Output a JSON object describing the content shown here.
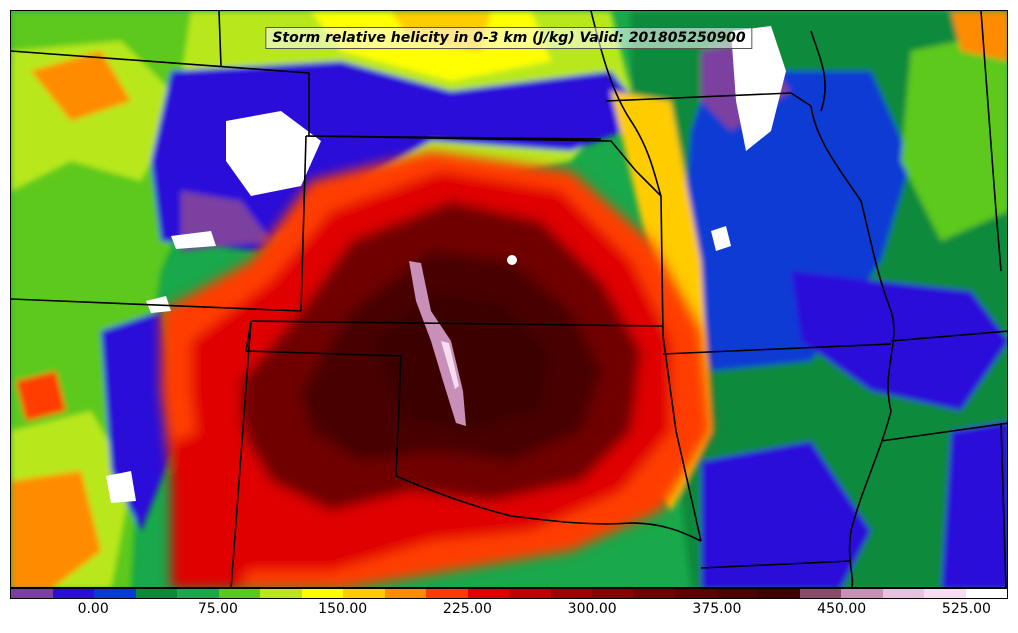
{
  "title": "Storm relative helicity in 0-3 km (J/kg) Valid: 201805250900",
  "colorbar": {
    "colors": [
      "#7b3fa0",
      "#2a0dd9",
      "#0a3ad4",
      "#0b8a3a",
      "#19a84a",
      "#5cc91a",
      "#b8e81a",
      "#ffff00",
      "#ffcc00",
      "#ff8c00",
      "#ff3c00",
      "#e00000",
      "#c00000",
      "#a00000",
      "#880000",
      "#700000",
      "#5a0000",
      "#4a0000",
      "#3c0000",
      "#8a4a6a",
      "#c890b8",
      "#e8c0e0",
      "#f7dcf2",
      "#ffffff"
    ],
    "tick_labels": [
      "0.00",
      "75.00",
      "150.00",
      "225.00",
      "300.00",
      "375.00",
      "450.00",
      "525.00"
    ],
    "tick_values": [
      0,
      75,
      150,
      225,
      300,
      375,
      450,
      525
    ],
    "range": [
      -50,
      550
    ]
  },
  "map": {
    "background": "#19a84a",
    "regions": [
      {
        "name": "west-green",
        "color": "#5cc91a"
      },
      {
        "name": "west-yellow",
        "color": "#b8e81a"
      },
      {
        "name": "plains-blue",
        "color": "#2a0dd9"
      },
      {
        "name": "plains-purple",
        "color": "#7b3fa0"
      },
      {
        "name": "white-nebraska",
        "color": "#ffffff"
      },
      {
        "name": "white-iowa",
        "color": "#ffffff"
      },
      {
        "name": "red-core",
        "color": "#e00000"
      },
      {
        "name": "dark-core",
        "color": "#4a0000"
      },
      {
        "name": "darker-core",
        "color": "#3c0000"
      },
      {
        "name": "pink-streak",
        "color": "#c890b8"
      },
      {
        "name": "east-blue",
        "color": "#0a3ad4"
      },
      {
        "name": "east-green",
        "color": "#0b8a3a"
      }
    ]
  }
}
